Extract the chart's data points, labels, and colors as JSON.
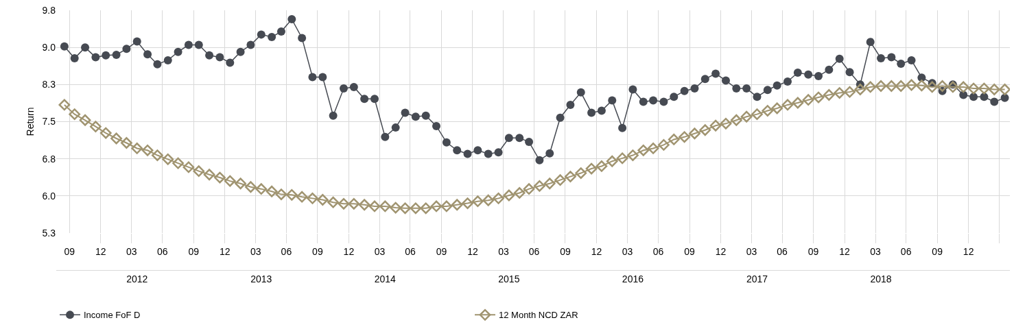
{
  "chart_data": {
    "type": "line",
    "ylabel": "Return",
    "x": [
      "2011-06",
      "2011-07",
      "2011-08",
      "2011-09",
      "2011-10",
      "2011-11",
      "2011-12",
      "2012-01",
      "2012-02",
      "2012-03",
      "2012-04",
      "2012-05",
      "2012-06",
      "2012-07",
      "2012-08",
      "2012-09",
      "2012-10",
      "2012-11",
      "2012-12",
      "2013-01",
      "2013-02",
      "2013-03",
      "2013-04",
      "2013-05",
      "2013-06",
      "2013-07",
      "2013-08",
      "2013-09",
      "2013-10",
      "2013-11",
      "2013-12",
      "2014-01",
      "2014-02",
      "2014-03",
      "2014-04",
      "2014-05",
      "2014-06",
      "2014-07",
      "2014-08",
      "2014-09",
      "2014-10",
      "2014-11",
      "2014-12",
      "2015-01",
      "2015-02",
      "2015-03",
      "2015-04",
      "2015-05",
      "2015-06",
      "2015-07",
      "2015-08",
      "2015-09",
      "2015-10",
      "2015-11",
      "2015-12",
      "2016-01",
      "2016-02",
      "2016-03",
      "2016-04",
      "2016-05",
      "2016-06",
      "2016-07",
      "2016-08",
      "2016-09",
      "2016-10",
      "2016-11",
      "2016-12",
      "2017-01",
      "2017-02",
      "2017-03",
      "2017-04",
      "2017-05",
      "2017-06",
      "2017-07",
      "2017-08",
      "2017-09",
      "2017-10",
      "2017-11",
      "2017-12",
      "2018-01",
      "2018-02",
      "2018-03",
      "2018-04",
      "2018-05",
      "2018-06",
      "2018-07",
      "2018-08",
      "2018-09",
      "2018-10",
      "2018-11",
      "2018-12",
      "2019-01"
    ],
    "series": [
      {
        "name": "Income FoF D",
        "color": "#464a52",
        "marker": "circle",
        "values": [
          9.02,
          8.78,
          9.0,
          8.8,
          8.84,
          8.85,
          8.97,
          9.12,
          8.86,
          8.66,
          8.74,
          8.91,
          9.05,
          9.05,
          8.84,
          8.8,
          8.69,
          8.91,
          9.05,
          9.26,
          9.21,
          9.32,
          9.57,
          9.19,
          8.4,
          8.4,
          7.62,
          8.17,
          8.2,
          7.96,
          7.96,
          7.19,
          7.38,
          7.68,
          7.6,
          7.62,
          7.41,
          7.08,
          6.92,
          6.85,
          6.92,
          6.85,
          6.88,
          7.17,
          7.17,
          7.09,
          6.72,
          6.86,
          7.58,
          7.84,
          8.09,
          7.68,
          7.72,
          7.93,
          7.37,
          8.15,
          7.9,
          7.93,
          7.9,
          8.0,
          8.12,
          8.17,
          8.36,
          8.47,
          8.33,
          8.17,
          8.17,
          8.0,
          8.14,
          8.23,
          8.31,
          8.49,
          8.45,
          8.42,
          8.55,
          8.77,
          8.5,
          8.25,
          9.11,
          8.78,
          8.8,
          8.67,
          8.74,
          8.39,
          8.28,
          8.12,
          8.25,
          8.04,
          8.0,
          8.0,
          7.9,
          7.98
        ]
      },
      {
        "name": "12 Month NCD ZAR",
        "color": "#a09470",
        "marker": "diamond",
        "values": [
          7.84,
          7.65,
          7.53,
          7.4,
          7.27,
          7.16,
          7.07,
          6.96,
          6.92,
          6.82,
          6.74,
          6.66,
          6.58,
          6.5,
          6.43,
          6.37,
          6.3,
          6.25,
          6.18,
          6.14,
          6.09,
          6.03,
          6.02,
          5.98,
          5.95,
          5.92,
          5.87,
          5.84,
          5.84,
          5.82,
          5.79,
          5.79,
          5.76,
          5.75,
          5.75,
          5.75,
          5.79,
          5.79,
          5.82,
          5.85,
          5.89,
          5.91,
          5.95,
          6.01,
          6.06,
          6.14,
          6.2,
          6.25,
          6.32,
          6.39,
          6.46,
          6.55,
          6.6,
          6.7,
          6.76,
          6.82,
          6.92,
          6.96,
          7.03,
          7.14,
          7.19,
          7.26,
          7.33,
          7.42,
          7.46,
          7.53,
          7.6,
          7.65,
          7.72,
          7.77,
          7.84,
          7.88,
          7.94,
          7.99,
          8.04,
          8.08,
          8.1,
          8.15,
          8.2,
          8.22,
          8.22,
          8.22,
          8.24,
          8.23,
          8.2,
          8.22,
          8.2,
          8.2,
          8.17,
          8.17,
          8.15,
          8.15
        ]
      }
    ],
    "xlim": [
      "2011-05-08",
      "2019-01-16"
    ],
    "xticks": [
      {
        "value": "2011-06-16",
        "label": "09"
      },
      {
        "value": "2011-09-16",
        "label": "12"
      },
      {
        "value": "2011-12-16",
        "label": "03"
      },
      {
        "value": "2012-03-16",
        "label": "06"
      },
      {
        "value": "2012-06-16",
        "label": "09"
      },
      {
        "value": "2012-09-16",
        "label": "12"
      },
      {
        "value": "2012-12-16",
        "label": "03"
      },
      {
        "value": "2013-03-16",
        "label": "06"
      },
      {
        "value": "2013-06-16",
        "label": "09"
      },
      {
        "value": "2013-09-16",
        "label": "12"
      },
      {
        "value": "2013-12-16",
        "label": "03"
      },
      {
        "value": "2014-03-16",
        "label": "06"
      },
      {
        "value": "2014-06-16",
        "label": "09"
      },
      {
        "value": "2014-09-16",
        "label": "12"
      },
      {
        "value": "2014-12-16",
        "label": "03"
      },
      {
        "value": "2015-03-16",
        "label": "06"
      },
      {
        "value": "2015-06-16",
        "label": "09"
      },
      {
        "value": "2015-09-16",
        "label": "12"
      },
      {
        "value": "2015-12-16",
        "label": "03"
      },
      {
        "value": "2016-03-16",
        "label": "06"
      },
      {
        "value": "2016-06-16",
        "label": "09"
      },
      {
        "value": "2016-09-16",
        "label": "12"
      },
      {
        "value": "2016-12-16",
        "label": "03"
      },
      {
        "value": "2017-03-16",
        "label": "06"
      },
      {
        "value": "2017-06-16",
        "label": "09"
      },
      {
        "value": "2017-09-16",
        "label": "12"
      },
      {
        "value": "2017-12-16",
        "label": "03"
      },
      {
        "value": "2018-03-16",
        "label": "06"
      },
      {
        "value": "2018-06-16",
        "label": "09"
      },
      {
        "value": "2018-09-16",
        "label": "12"
      },
      {
        "value": "2018-12-16",
        "label": null
      }
    ],
    "x2lim": [
      "2011-05-08",
      "2019-01-16"
    ],
    "x2ticks": [
      {
        "value": "2012",
        "label": "2012"
      },
      {
        "value": "2013",
        "label": "2013"
      },
      {
        "value": "2014",
        "label": "2014"
      },
      {
        "value": "2015",
        "label": "2015"
      },
      {
        "value": "2016",
        "label": "2016"
      },
      {
        "value": "2017",
        "label": "2017"
      },
      {
        "value": "2018",
        "label": "2018"
      }
    ],
    "ylim": [
      5.25,
      9.75
    ],
    "yticks": [
      {
        "value": 5.25,
        "label": "5.3"
      },
      {
        "value": 6.0,
        "label": "6.0"
      },
      {
        "value": 6.75,
        "label": "6.8"
      },
      {
        "value": 7.5,
        "label": "7.5"
      },
      {
        "value": 8.25,
        "label": "8.3"
      },
      {
        "value": 9.0,
        "label": "9.0"
      },
      {
        "value": 9.75,
        "label": "9.8"
      }
    ],
    "grid": true,
    "legend": "bottom"
  }
}
